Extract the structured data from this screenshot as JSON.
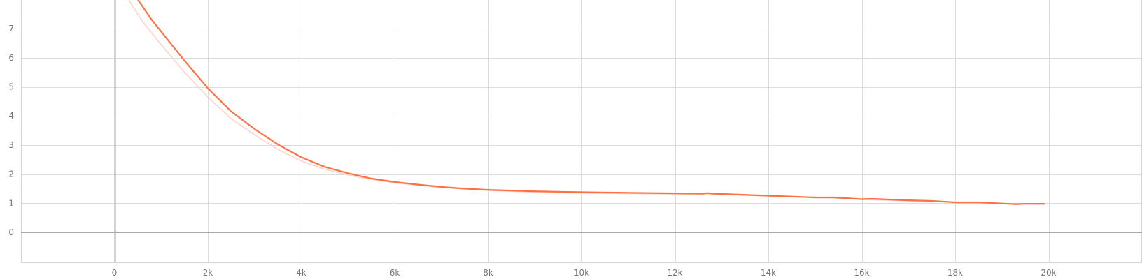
{
  "chart_data": {
    "type": "line",
    "title": "",
    "xlabel": "",
    "ylabel": "",
    "xlim": [
      -2000,
      22000
    ],
    "ylim": [
      -1,
      8
    ],
    "grid": true,
    "x_ticks": [
      0,
      2000,
      4000,
      6000,
      8000,
      10000,
      12000,
      14000,
      16000,
      18000,
      20000
    ],
    "x_tick_labels": [
      "0",
      "2k",
      "4k",
      "6k",
      "8k",
      "10k",
      "12k",
      "14k",
      "16k",
      "18k",
      "20k"
    ],
    "y_ticks": [
      0,
      1,
      2,
      3,
      4,
      5,
      6,
      7
    ],
    "y_tick_labels": [
      "0",
      "1",
      "2",
      "3",
      "4",
      "5",
      "6",
      "7"
    ],
    "colors": {
      "smoothed": "#ff7043",
      "raw": "#ffd3c5",
      "grid": "#dcdcdc",
      "axis": "#a8a8a8"
    },
    "series": [
      {
        "role": "raw",
        "x": [
          300,
          600,
          800,
          1000,
          1500,
          2000,
          2500,
          3000,
          3500,
          4000,
          4500,
          5000,
          5500,
          6000,
          7000,
          8000,
          9000,
          10000,
          11000,
          12000,
          12600,
          12700,
          12800,
          13000,
          14000,
          15000,
          15400,
          16000,
          17000,
          18000,
          19000,
          19300,
          19500,
          19900
        ],
        "y": [
          8.0,
          7.25,
          6.85,
          6.45,
          5.5,
          4.65,
          3.9,
          3.35,
          2.85,
          2.45,
          2.17,
          1.97,
          1.82,
          1.7,
          1.54,
          1.44,
          1.38,
          1.35,
          1.33,
          1.32,
          1.31,
          1.32,
          1.31,
          1.3,
          1.25,
          1.19,
          1.18,
          1.13,
          1.08,
          1.03,
          0.98,
          0.96,
          0.97,
          0.96
        ]
      },
      {
        "role": "smoothed",
        "x": [
          500,
          800,
          1000,
          1500,
          2000,
          2500,
          3000,
          3500,
          4000,
          4500,
          5000,
          5500,
          6000,
          6500,
          7000,
          7500,
          8000,
          9000,
          10000,
          11000,
          12000,
          12600,
          12700,
          12800,
          13000,
          14000,
          15000,
          15400,
          16000,
          16200,
          17000,
          17500,
          18000,
          18500,
          19000,
          19300,
          19500,
          19900
        ],
        "y": [
          8.0,
          7.3,
          6.9,
          5.9,
          4.95,
          4.15,
          3.55,
          3.02,
          2.58,
          2.25,
          2.03,
          1.85,
          1.73,
          1.64,
          1.56,
          1.5,
          1.46,
          1.41,
          1.38,
          1.36,
          1.34,
          1.33,
          1.35,
          1.33,
          1.32,
          1.26,
          1.2,
          1.2,
          1.14,
          1.15,
          1.1,
          1.08,
          1.03,
          1.03,
          0.99,
          0.97,
          0.98,
          0.98
        ]
      }
    ]
  }
}
